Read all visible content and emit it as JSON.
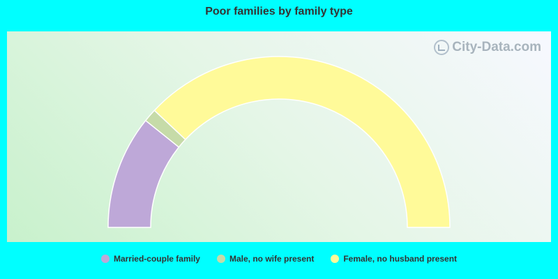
{
  "chart_data": {
    "type": "pie",
    "title": "Poor families by family type",
    "categories": [
      "Married-couple family",
      "Male, no wife present",
      "Female, no husband present"
    ],
    "values": [
      21.5,
      2.5,
      76.0
    ],
    "colors": [
      "#bea8d8",
      "#c6dba8",
      "#fffa99"
    ],
    "legend_position": "bottom",
    "style": "half-donut"
  },
  "watermark": {
    "text": "City-Data.com"
  }
}
